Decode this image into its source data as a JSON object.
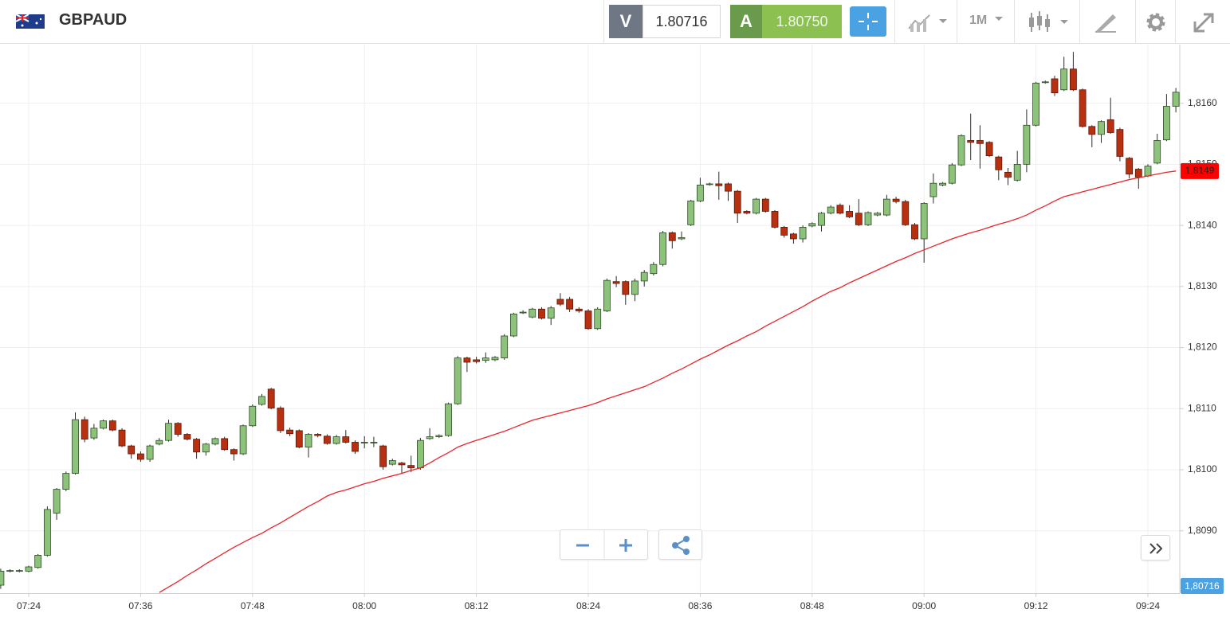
{
  "header": {
    "symbol": "GBPAUD",
    "sell": {
      "label": "V",
      "price": "1.80716"
    },
    "buy": {
      "label": "A",
      "price": "1.80750"
    },
    "timeframe": "1M"
  },
  "chart_data": {
    "type": "candlestick",
    "categories": [
      null,
      null,
      null,
      "07:24",
      null,
      null,
      null,
      null,
      null,
      null,
      null,
      null,
      null,
      null,
      null,
      "07:36",
      null,
      null,
      null,
      null,
      null,
      null,
      null,
      null,
      null,
      null,
      null,
      "07:48",
      null,
      null,
      null,
      null,
      null,
      null,
      null,
      null,
      null,
      null,
      null,
      "08:00",
      null,
      null,
      null,
      null,
      null,
      null,
      null,
      null,
      null,
      null,
      null,
      "08:12",
      null,
      null,
      null,
      null,
      null,
      null,
      null,
      null,
      null,
      null,
      null,
      "08:24",
      null,
      null,
      null,
      null,
      null,
      null,
      null,
      null,
      null,
      null,
      null,
      "08:36",
      null,
      null,
      null,
      null,
      null,
      null,
      null,
      null,
      null,
      null,
      null,
      "08:48",
      null,
      null,
      null,
      null,
      null,
      null,
      null,
      null,
      null,
      null,
      null,
      "09:00",
      null,
      null,
      null,
      null,
      null,
      null,
      null,
      null,
      null,
      null,
      null,
      "09:12",
      null,
      null,
      null,
      null,
      null,
      null,
      null,
      null,
      null,
      null,
      null,
      "09:24",
      null,
      null,
      null
    ],
    "ohlc": {
      "open": [
        1.80811,
        1.80834,
        1.80834,
        1.80834,
        1.8084,
        1.8086,
        1.80929,
        1.80968,
        1.80994,
        1.81082,
        1.81052,
        1.81068,
        1.8108,
        1.81065,
        1.81039,
        1.81026,
        1.81017,
        1.81042,
        1.81048,
        1.81076,
        1.81058,
        1.8105,
        1.81029,
        1.81042,
        1.81051,
        1.81033,
        1.81026,
        1.81072,
        1.81107,
        1.81132,
        1.81101,
        1.81065,
        1.81064,
        1.81037,
        1.81058,
        1.81055,
        1.81043,
        1.81054,
        1.81045,
        1.81045,
        1.81045,
        1.81039,
        1.81009,
        1.81011,
        1.81007,
        1.81003,
        1.81051,
        1.81054,
        1.81056,
        1.81108,
        1.81183,
        1.8118,
        1.81179,
        1.8118,
        1.81183,
        1.81219,
        1.81257,
        1.8125,
        1.81263,
        1.81248,
        1.81279,
        1.81279,
        1.81263,
        1.8126,
        1.81231,
        1.8126,
        1.81308,
        1.81308,
        1.81287,
        1.81309,
        1.81321,
        1.81336,
        1.81388,
        1.81378,
        1.81401,
        1.8144,
        1.81467,
        1.81468,
        1.81468,
        1.81456,
        1.81423,
        1.8142,
        1.81443,
        1.81423,
        1.81397,
        1.81386,
        1.81378,
        1.81399,
        1.814,
        1.8142,
        1.81433,
        1.81423,
        1.8142,
        1.81401,
        1.81417,
        1.81417,
        1.81443,
        1.81439,
        1.81401,
        1.81378,
        1.81447,
        1.81466,
        1.81469,
        1.81499,
        1.81539,
        1.81539,
        1.81536,
        1.81512,
        1.81487,
        1.81474,
        1.815,
        1.81564,
        1.81634,
        1.8164,
        1.81622,
        1.81656,
        1.81622,
        1.81562,
        1.81549,
        1.81573,
        1.81557,
        1.8151,
        1.81492,
        1.81481,
        1.81502,
        1.8154,
        1.81595
      ],
      "high": [
        1.80838,
        1.80837,
        1.80837,
        1.80843,
        1.80862,
        1.8094,
        1.8097,
        1.80997,
        1.81094,
        1.81087,
        1.81075,
        1.81082,
        1.81082,
        1.81068,
        1.81041,
        1.8103,
        1.81041,
        1.81052,
        1.81082,
        1.81078,
        1.8106,
        1.81052,
        1.81044,
        1.81053,
        1.81054,
        1.81035,
        1.81074,
        1.81107,
        1.81124,
        1.81134,
        1.81104,
        1.81069,
        1.81066,
        1.8106,
        1.8106,
        1.81058,
        1.81057,
        1.81065,
        1.81048,
        1.81055,
        1.81054,
        1.81041,
        1.81018,
        1.81013,
        1.81023,
        1.81052,
        1.81068,
        1.81058,
        1.8111,
        1.81186,
        1.81185,
        1.81185,
        1.81192,
        1.81186,
        1.81222,
        1.81257,
        1.81261,
        1.81265,
        1.81266,
        1.81268,
        1.81289,
        1.81283,
        1.81266,
        1.81263,
        1.81266,
        1.81313,
        1.81317,
        1.8131,
        1.81313,
        1.81327,
        1.8134,
        1.81391,
        1.8139,
        1.8139,
        1.81442,
        1.81478,
        1.8147,
        1.81488,
        1.8147,
        1.81458,
        1.81425,
        1.81445,
        1.81445,
        1.81425,
        1.81399,
        1.81388,
        1.814,
        1.81405,
        1.81422,
        1.81433,
        1.81436,
        1.81433,
        1.81443,
        1.81423,
        1.81422,
        1.8145,
        1.81447,
        1.81442,
        1.81404,
        1.81438,
        1.81485,
        1.81471,
        1.81502,
        1.81549,
        1.81583,
        1.81564,
        1.81538,
        1.81514,
        1.81494,
        1.81522,
        1.8159,
        1.81635,
        1.81637,
        1.81645,
        1.81676,
        1.81684,
        1.81624,
        1.81564,
        1.81572,
        1.81609,
        1.8156,
        1.81512,
        1.81494,
        1.815,
        1.8155,
        1.81615,
        1.81625
      ],
      "low": [
        1.80805,
        1.80832,
        1.80832,
        1.80832,
        1.80838,
        1.80858,
        1.80918,
        1.80965,
        1.80992,
        1.81045,
        1.81049,
        1.81066,
        1.81063,
        1.81037,
        1.81018,
        1.81013,
        1.81013,
        1.8104,
        1.81046,
        1.81054,
        1.81048,
        1.81018,
        1.81023,
        1.8104,
        1.81031,
        1.81015,
        1.81024,
        1.8107,
        1.81105,
        1.81099,
        1.8106,
        1.81055,
        1.81035,
        1.8102,
        1.81053,
        1.81041,
        1.81041,
        1.81043,
        1.81026,
        1.81035,
        1.81037,
        1.81,
        1.81007,
        1.80994,
        1.80996,
        1.81,
        1.81049,
        1.81052,
        1.81054,
        1.81106,
        1.8116,
        1.81174,
        1.81175,
        1.81178,
        1.8118,
        1.81217,
        1.81255,
        1.81248,
        1.81246,
        1.81237,
        1.81268,
        1.81258,
        1.81257,
        1.81229,
        1.81229,
        1.81258,
        1.81299,
        1.8127,
        1.81276,
        1.813,
        1.81318,
        1.81333,
        1.81362,
        1.81376,
        1.81399,
        1.81438,
        1.81465,
        1.81442,
        1.8144,
        1.81404,
        1.81418,
        1.81418,
        1.81421,
        1.81395,
        1.8138,
        1.8137,
        1.81372,
        1.81397,
        1.8139,
        1.81418,
        1.81418,
        1.81412,
        1.81399,
        1.81399,
        1.81415,
        1.81415,
        1.81436,
        1.81399,
        1.81376,
        1.81339,
        1.81436,
        1.81464,
        1.81467,
        1.81497,
        1.81507,
        1.81493,
        1.81512,
        1.81474,
        1.81466,
        1.81472,
        1.81487,
        1.81562,
        1.81632,
        1.81612,
        1.8162,
        1.8162,
        1.8156,
        1.81528,
        1.81535,
        1.8155,
        1.81505,
        1.81477,
        1.8146,
        1.81479,
        1.815,
        1.81538,
        1.81585
      ],
      "close": [
        1.80834,
        1.80835,
        1.80835,
        1.80841,
        1.8086,
        1.80935,
        1.80968,
        1.80994,
        1.81082,
        1.8105,
        1.81068,
        1.8108,
        1.81065,
        1.81039,
        1.81026,
        1.81017,
        1.81039,
        1.81048,
        1.81076,
        1.81058,
        1.8105,
        1.81029,
        1.81042,
        1.81051,
        1.81033,
        1.81026,
        1.81072,
        1.81104,
        1.8112,
        1.81101,
        1.81064,
        1.81059,
        1.81037,
        1.81058,
        1.81056,
        1.81043,
        1.81054,
        1.81045,
        1.8103,
        1.81045,
        1.81045,
        1.81005,
        1.81015,
        1.81008,
        1.81003,
        1.81048,
        1.81054,
        1.81056,
        1.81108,
        1.81183,
        1.81176,
        1.81177,
        1.81183,
        1.81184,
        1.81219,
        1.81255,
        1.81258,
        1.81263,
        1.81248,
        1.81265,
        1.81271,
        1.81263,
        1.8126,
        1.81231,
        1.81263,
        1.8131,
        1.81305,
        1.81287,
        1.81309,
        1.81323,
        1.81336,
        1.81388,
        1.81375,
        1.8138,
        1.8144,
        1.81466,
        1.81468,
        1.81465,
        1.81456,
        1.8142,
        1.8142,
        1.81443,
        1.81423,
        1.81397,
        1.81384,
        1.81378,
        1.81397,
        1.81403,
        1.8142,
        1.8143,
        1.8142,
        1.81414,
        1.81401,
        1.81421,
        1.8142,
        1.81443,
        1.81439,
        1.81401,
        1.81378,
        1.81436,
        1.81469,
        1.81469,
        1.81499,
        1.81547,
        1.81536,
        1.81534,
        1.81514,
        1.81491,
        1.81479,
        1.815,
        1.81564,
        1.81633,
        1.81635,
        1.81617,
        1.81656,
        1.81622,
        1.81562,
        1.81549,
        1.8157,
        1.81552,
        1.81513,
        1.81484,
        1.81479,
        1.81497,
        1.81539,
        1.81595,
        1.81618
      ]
    },
    "up_color": "#8dc27b",
    "down_color": "#b8300f",
    "ma": {
      "color": "#e8262a",
      "values": [
        null,
        null,
        null,
        null,
        null,
        null,
        null,
        null,
        null,
        null,
        null,
        null,
        null,
        null,
        null,
        null,
        null,
        1.80799,
        1.80808,
        1.80817,
        1.80827,
        1.80836,
        1.80846,
        1.80855,
        1.80864,
        1.80873,
        1.80881,
        1.80889,
        1.80896,
        1.80905,
        1.80913,
        1.80922,
        1.80931,
        1.8094,
        1.80948,
        1.80957,
        1.80963,
        1.80967,
        1.80972,
        1.80977,
        1.80981,
        1.80986,
        1.8099,
        1.80994,
        1.80999,
        1.81003,
        1.81011,
        1.8102,
        1.81028,
        1.81037,
        1.81043,
        1.81048,
        1.81053,
        1.81058,
        1.81063,
        1.81069,
        1.81075,
        1.81081,
        1.81085,
        1.81089,
        1.81093,
        1.81097,
        1.81101,
        1.81105,
        1.8111,
        1.81116,
        1.81121,
        1.81126,
        1.81131,
        1.81136,
        1.81143,
        1.8115,
        1.81158,
        1.81165,
        1.81173,
        1.81181,
        1.81188,
        1.81196,
        1.81204,
        1.81211,
        1.81219,
        1.81226,
        1.81235,
        1.81243,
        1.81251,
        1.81259,
        1.81267,
        1.81276,
        1.81284,
        1.81292,
        1.81298,
        1.81306,
        1.81313,
        1.8132,
        1.81327,
        1.81334,
        1.81341,
        1.81347,
        1.81354,
        1.8136,
        1.81366,
        1.81372,
        1.81378,
        1.81383,
        1.81388,
        1.81392,
        1.81397,
        1.81402,
        1.81406,
        1.81411,
        1.81417,
        1.81425,
        1.81432,
        1.8144,
        1.81447,
        1.81451,
        1.81455,
        1.81459,
        1.81463,
        1.81467,
        1.81471,
        1.81475,
        1.81478,
        1.81481,
        1.81484,
        1.81487,
        1.81489
      ],
      "last_label": {
        "value": 1.81489,
        "label": "1,8149"
      }
    },
    "price_tag": "1,80716",
    "ylim": [
      1.80798,
      1.81696
    ],
    "yticks": [
      {
        "value": 1.809,
        "label": "1,8090"
      },
      {
        "value": 1.81,
        "label": "1,8100"
      },
      {
        "value": 1.811,
        "label": "1,8110"
      },
      {
        "value": 1.812,
        "label": "1,8120"
      },
      {
        "value": 1.813,
        "label": "1,8130"
      },
      {
        "value": 1.814,
        "label": "1,8140"
      },
      {
        "value": 1.815,
        "label": "1,8150"
      },
      {
        "value": 1.816,
        "label": "1,8160"
      }
    ],
    "grid": true
  }
}
